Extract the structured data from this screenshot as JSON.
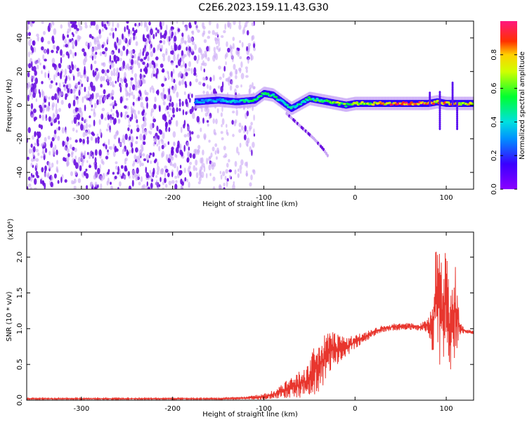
{
  "title": "C2E6.2023.159.11.43.G30",
  "colors": {
    "line": "#e8362e",
    "scatter_dense": "#6a0fe0",
    "scatter_light": "#c9a6f5",
    "axis": "#000000"
  },
  "chart_data": [
    {
      "type": "heatmap",
      "xlabel": "Height of straight line (km)",
      "ylabel": "Frequency (Hz)",
      "xlim": [
        -360,
        130
      ],
      "ylim": [
        -50,
        50
      ],
      "xticks": [
        -300,
        -200,
        -100,
        0,
        100
      ],
      "yticks": [
        -40,
        -20,
        0,
        20,
        40
      ],
      "colorbar": {
        "label": "Normalized spectral amplitude",
        "range": [
          0.0,
          1.0
        ],
        "ticks": [
          0.0,
          0.2,
          0.4,
          0.6,
          0.8
        ],
        "colormap": "rainbow (purple-blue-cyan-green-yellow-red-pink)"
      },
      "regions": [
        {
          "x_range": [
            -360,
            -175
          ],
          "frequency_range": [
            -50,
            50
          ],
          "amplitude": "low, dense noise"
        },
        {
          "x_range": [
            -175,
            -110
          ],
          "frequency_range": [
            -50,
            50
          ],
          "amplitude": "low, sparse noise"
        },
        {
          "x_range": [
            -175,
            130
          ],
          "frequency_range": [
            -3,
            8
          ],
          "amplitude": "high, carrier trace near 0-2 Hz"
        },
        {
          "x_range": [
            -80,
            -30
          ],
          "frequency_range": [
            -30,
            -5
          ],
          "amplitude": "weak descending branch"
        }
      ],
      "ridge": {
        "x": [
          -175,
          -150,
          -130,
          -110,
          -100,
          -90,
          -80,
          -70,
          -60,
          -50,
          -40,
          -30,
          -20,
          -10,
          0,
          20,
          40,
          60,
          80,
          90,
          100,
          110,
          130
        ],
        "frequency": [
          2,
          3,
          2,
          3,
          7,
          6,
          2,
          -2,
          1,
          4,
          3,
          2,
          1,
          0,
          1,
          1,
          1,
          1,
          1,
          2,
          1,
          1,
          1
        ],
        "amplitude": [
          0.3,
          0.35,
          0.4,
          0.5,
          0.55,
          0.5,
          0.45,
          0.4,
          0.45,
          0.5,
          0.55,
          0.6,
          0.65,
          0.6,
          0.65,
          0.7,
          0.85,
          0.9,
          0.9,
          0.8,
          0.85,
          0.8,
          0.75
        ]
      },
      "descending_branch": {
        "x": [
          -75,
          -65,
          -55,
          -45,
          -35,
          -30
        ],
        "frequency": [
          -5,
          -10,
          -15,
          -20,
          -26,
          -30
        ]
      },
      "spike_features": [
        {
          "x": 82,
          "frequency_range": [
            0,
            8
          ]
        },
        {
          "x": 93,
          "frequency_range": [
            -14,
            8
          ]
        },
        {
          "x": 107,
          "frequency_range": [
            0,
            14
          ]
        },
        {
          "x": 112,
          "frequency_range": [
            -14,
            2
          ]
        }
      ]
    },
    {
      "type": "line",
      "xlabel": "Height of straight line (km)",
      "ylabel": "SNR (10 * v/v)",
      "y_multiplier": "(x10⁴)",
      "xlim": [
        -360,
        130
      ],
      "ylim": [
        0,
        2.35
      ],
      "xticks": [
        -300,
        -200,
        -100,
        0,
        100
      ],
      "yticks": [
        0.0,
        0.5,
        1.0,
        1.5,
        2.0
      ],
      "series": [
        {
          "x": [
            -360,
            -300,
            -250,
            -200,
            -150,
            -120,
            -100,
            -90,
            -80,
            -70,
            -60,
            -50,
            -45,
            -40,
            -35,
            -30,
            -25,
            -20,
            -15,
            -10,
            -5,
            0,
            10,
            20,
            30,
            40,
            50,
            60,
            70,
            80,
            85,
            90,
            95,
            100,
            105,
            110,
            115,
            120,
            130
          ],
          "values": [
            0.02,
            0.02,
            0.02,
            0.02,
            0.02,
            0.03,
            0.05,
            0.08,
            0.12,
            0.18,
            0.22,
            0.3,
            0.4,
            0.5,
            0.55,
            0.65,
            0.7,
            0.68,
            0.72,
            0.75,
            0.78,
            0.82,
            0.88,
            0.95,
            1.0,
            1.02,
            1.03,
            1.03,
            1.02,
            1.05,
            1.02,
            1.5,
            1.1,
            1.5,
            0.9,
            1.3,
            1.0,
            0.97,
            0.95
          ],
          "noise_amplitude": [
            0.01,
            0.01,
            0.01,
            0.01,
            0.01,
            0.02,
            0.04,
            0.06,
            0.1,
            0.15,
            0.2,
            0.25,
            0.35,
            0.4,
            0.35,
            0.3,
            0.3,
            0.3,
            0.2,
            0.15,
            0.12,
            0.1,
            0.08,
            0.06,
            0.05,
            0.05,
            0.05,
            0.05,
            0.05,
            0.1,
            0.4,
            0.9,
            0.9,
            0.7,
            0.8,
            0.7,
            0.1,
            0.03,
            0.03
          ]
        }
      ]
    }
  ]
}
